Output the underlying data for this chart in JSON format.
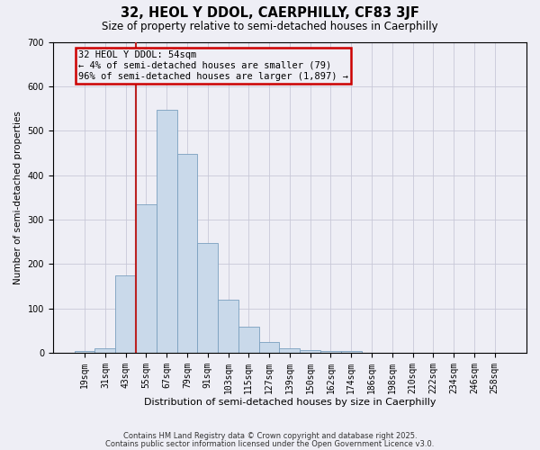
{
  "title": "32, HEOL Y DDOL, CAERPHILLY, CF83 3JF",
  "subtitle": "Size of property relative to semi-detached houses in Caerphilly",
  "xlabel": "Distribution of semi-detached houses by size in Caerphilly",
  "ylabel": "Number of semi-detached properties",
  "bar_color": "#c9d9ea",
  "bar_edge_color": "#7a9fbe",
  "vline_color": "#bb2222",
  "annotation_text": "32 HEOL Y DDOL: 54sqm\n← 4% of semi-detached houses are smaller (79)\n96% of semi-detached houses are larger (1,897) →",
  "annotation_box_color": "#cc0000",
  "categories": [
    "19sqm",
    "31sqm",
    "43sqm",
    "55sqm",
    "67sqm",
    "79sqm",
    "91sqm",
    "103sqm",
    "115sqm",
    "127sqm",
    "139sqm",
    "150sqm",
    "162sqm",
    "174sqm",
    "186sqm",
    "198sqm",
    "210sqm",
    "222sqm",
    "234sqm",
    "246sqm",
    "258sqm"
  ],
  "values": [
    5,
    11,
    175,
    335,
    548,
    447,
    247,
    120,
    58,
    25,
    10,
    7,
    3,
    4,
    0,
    0,
    0,
    0,
    0,
    0,
    0
  ],
  "ylim": [
    0,
    700
  ],
  "yticks": [
    0,
    100,
    200,
    300,
    400,
    500,
    600,
    700
  ],
  "grid_color": "#c8c8d8",
  "background_color": "#eeeef5",
  "footer_line1": "Contains HM Land Registry data © Crown copyright and database right 2025.",
  "footer_line2": "Contains public sector information licensed under the Open Government Licence v3.0."
}
